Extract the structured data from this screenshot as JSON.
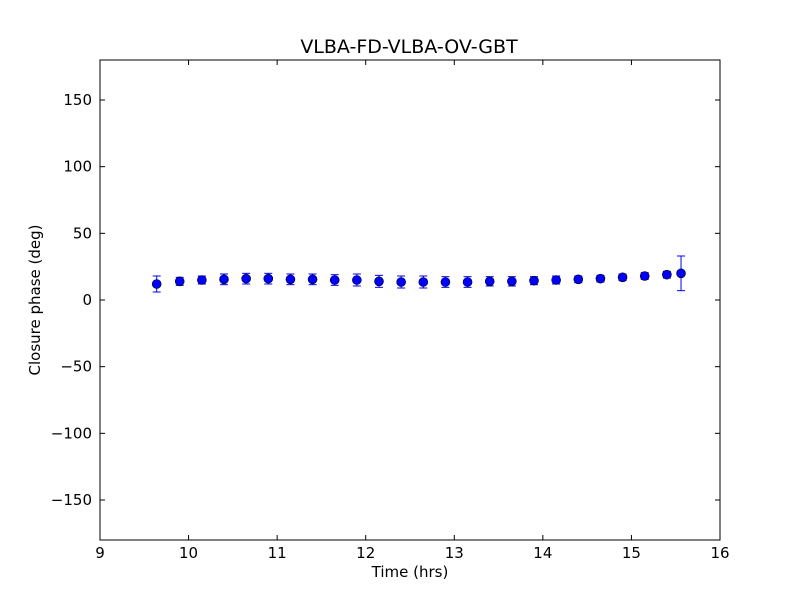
{
  "chart_data": {
    "type": "scatter",
    "title": "VLBA-FD-VLBA-OV-GBT",
    "xlabel": "Time (hrs)",
    "ylabel": "Closure phase (deg)",
    "xlim": [
      9,
      16
    ],
    "ylim": [
      -180,
      180
    ],
    "xticks": [
      9,
      10,
      11,
      12,
      13,
      14,
      15,
      16
    ],
    "xtick_labels": [
      "9",
      "10",
      "11",
      "12",
      "13",
      "14",
      "15",
      "16"
    ],
    "yticks": [
      -150,
      -100,
      -50,
      0,
      50,
      100,
      150
    ],
    "ytick_labels": [
      "−150",
      "−100",
      "−50",
      "0",
      "50",
      "100",
      "150"
    ],
    "grid": false,
    "marker_color": "#0000ff",
    "series": [
      {
        "x": [
          9.64,
          9.9,
          10.15,
          10.4,
          10.65,
          10.9,
          11.15,
          11.4,
          11.65,
          11.9,
          12.15,
          12.4,
          12.65,
          12.9,
          13.15,
          13.4,
          13.65,
          13.9,
          14.15,
          14.4,
          14.65,
          14.9,
          15.15,
          15.4,
          15.56
        ],
        "y": [
          12,
          14,
          15,
          15.5,
          16,
          16,
          15.5,
          15.5,
          15,
          15,
          14,
          13.5,
          13.5,
          13.5,
          13.5,
          14,
          14,
          14.5,
          15,
          15.5,
          16,
          17,
          18,
          19,
          20
        ],
        "yerr": [
          6,
          3,
          3,
          4,
          4,
          4,
          4,
          4,
          4,
          4.5,
          4.5,
          4.5,
          4.5,
          4,
          4,
          3.5,
          3.5,
          3,
          3,
          2.5,
          2.5,
          2.5,
          2.5,
          2.5,
          13
        ]
      }
    ]
  }
}
